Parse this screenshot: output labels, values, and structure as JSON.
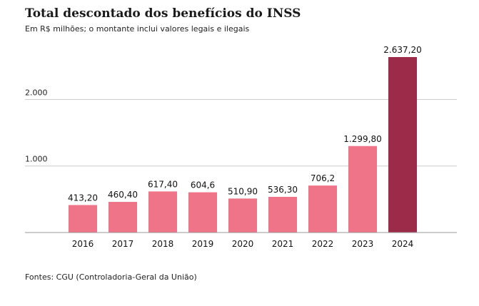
{
  "title": "Total descontado dos benefícios do INSS",
  "subtitle": "Em R$ milhões; o montante inclui valores legais e ilegais",
  "source": "Fontes: CGU (Controladoria-Geral da União)",
  "colors": {
    "bar": "#f07487",
    "highlight": "#9c2b4a",
    "grid": "#cccccc",
    "axis": "#999999"
  },
  "chart_data": {
    "type": "bar",
    "categories": [
      "2016",
      "2017",
      "2018",
      "2019",
      "2020",
      "2021",
      "2022",
      "2023",
      "2024"
    ],
    "values": [
      413.2,
      460.4,
      617.4,
      604.6,
      510.9,
      536.3,
      706.2,
      1299.8,
      2637.2
    ],
    "data_labels": [
      "413,20",
      "460,40",
      "617,40",
      "604,6",
      "510,90",
      "536,30",
      "706,2",
      "1.299,80",
      "2.637,20"
    ],
    "highlight_index": 8,
    "yticks": [
      1000,
      2000
    ],
    "ytick_labels": [
      "1.000",
      "2.000"
    ],
    "ylim": [
      0,
      2637.2
    ],
    "grid": true,
    "legend": "none"
  }
}
